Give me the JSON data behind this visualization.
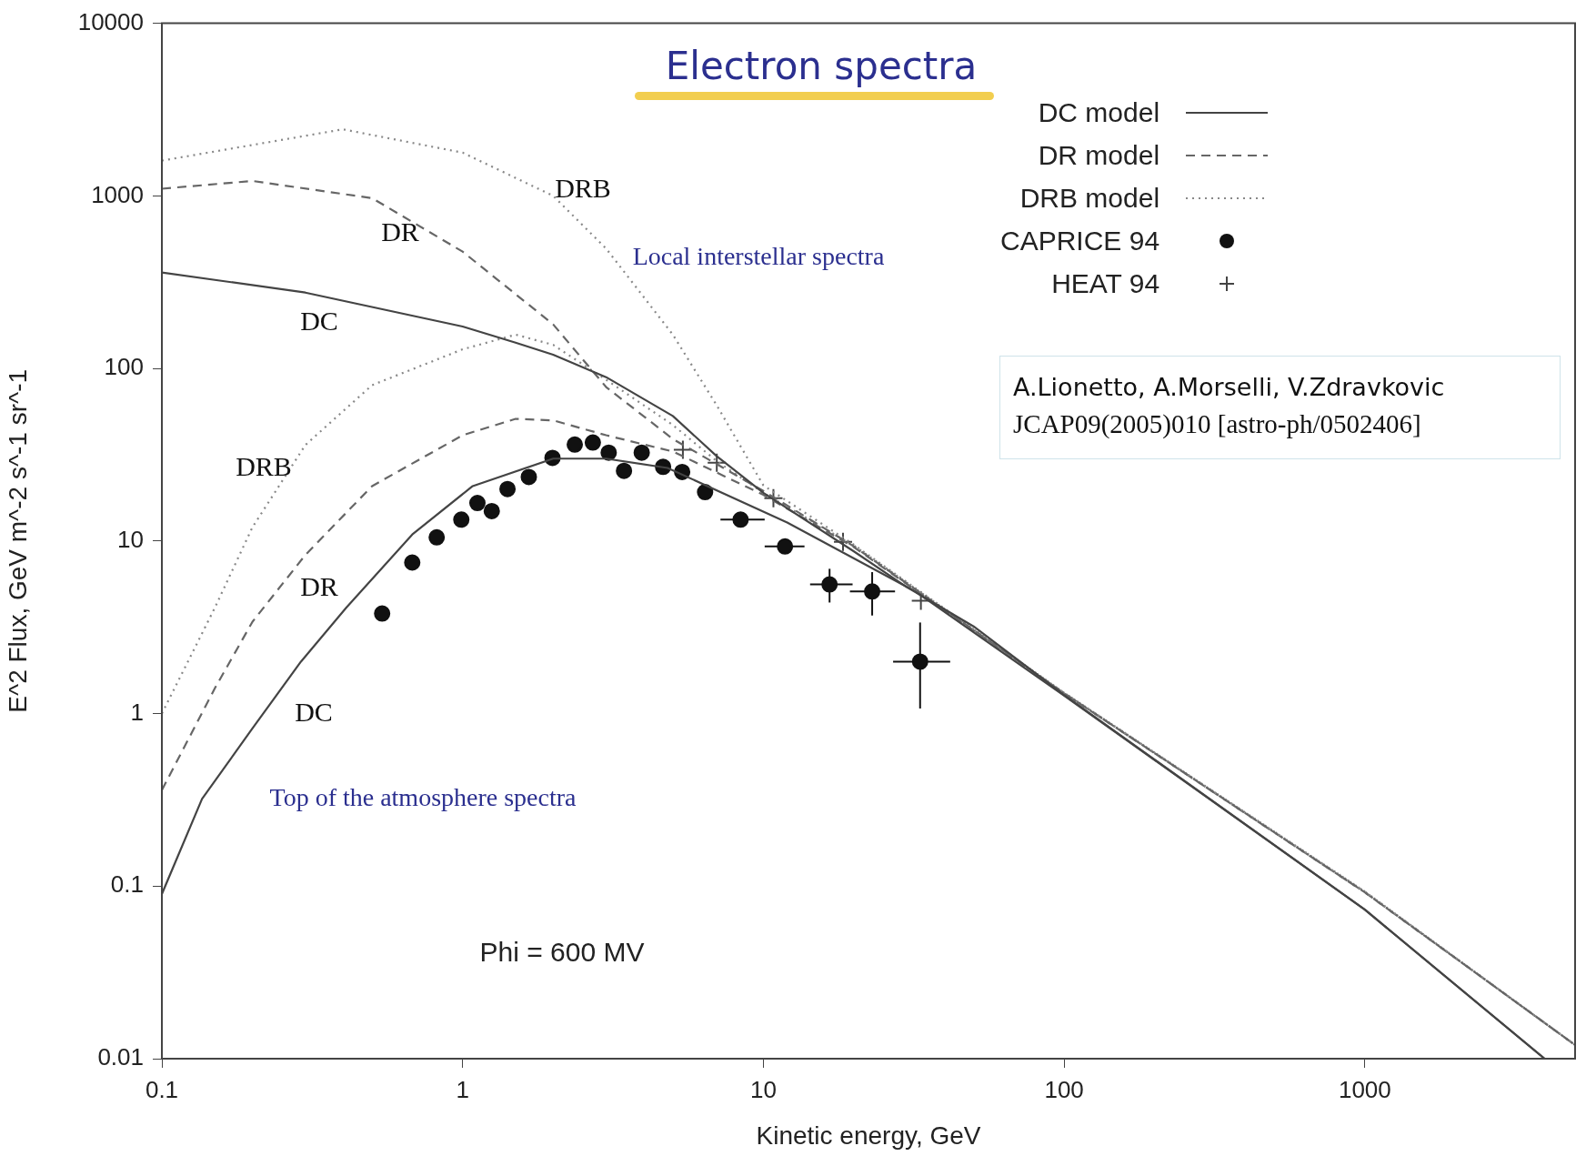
{
  "chart_data": {
    "type": "line",
    "title": "Electron spectra",
    "xlabel": "Kinetic energy, GeV",
    "ylabel": "E^2 Flux, GeV m^-2 s^-1 sr^-1",
    "log": "xy",
    "xlim": [
      0.1,
      5000
    ],
    "ylim": [
      0.01,
      10000
    ],
    "xticks": [
      0.1,
      1,
      10,
      100,
      1000
    ],
    "yticks": [
      0.01,
      0.1,
      1,
      10,
      100,
      1000,
      10000
    ],
    "grid": false,
    "legend": "top right",
    "series": [
      {
        "name": "DC model",
        "line_style": "solid",
        "marker": "none",
        "color": "#444444",
        "x": [
          0.1,
          0.3,
          1,
          1.5,
          2,
          3,
          5,
          7,
          10,
          20,
          30,
          50,
          100,
          1000,
          3960
        ],
        "values": [
          360,
          275,
          175,
          141,
          120,
          89,
          53,
          31,
          19,
          8.7,
          5.4,
          3.2,
          1.28,
          0.073,
          0.01
        ]
      },
      {
        "name": "DR model",
        "line_style": "dashed",
        "marker": "none",
        "color": "#666666",
        "x": [
          0.1,
          0.2,
          0.5,
          1,
          2,
          3,
          5,
          10,
          20,
          100,
          1000,
          5000
        ],
        "values": [
          1100,
          1220,
          970,
          475,
          180,
          78,
          39,
          19.5,
          9.3,
          1.31,
          0.092,
          0.012
        ]
      },
      {
        "name": "DRB model",
        "line_style": "dotted",
        "marker": "none",
        "color": "#888888",
        "x": [
          0.1,
          0.4,
          1,
          2,
          3,
          5,
          7,
          10,
          20,
          100,
          1000,
          5000
        ],
        "values": [
          1600,
          2430,
          1780,
          1000,
          495,
          157,
          61,
          21,
          9.5,
          1.32,
          0.093,
          0.012
        ]
      },
      {
        "line_style": "solid",
        "marker": "none",
        "color": "#444444",
        "x": [
          0.1,
          0.136,
          0.2,
          0.29,
          0.41,
          0.68,
          1.08,
          2,
          3,
          4.8,
          12,
          32,
          100,
          1000,
          3960
        ],
        "values": [
          0.09,
          0.32,
          0.82,
          2.0,
          4.1,
          10.9,
          20.8,
          30,
          30,
          26.5,
          12.8,
          5.1,
          1.27,
          0.073,
          0.01
        ]
      },
      {
        "line_style": "dashed",
        "marker": "none",
        "color": "#666666",
        "x": [
          0.1,
          0.15,
          0.2,
          0.3,
          0.5,
          1,
          1.5,
          2,
          3,
          5,
          10,
          20,
          100,
          1000,
          5000
        ],
        "values": [
          0.36,
          1.4,
          3.4,
          8.3,
          20.8,
          41,
          51,
          50,
          41,
          33,
          18.5,
          9.2,
          1.31,
          0.092,
          0.012
        ]
      },
      {
        "line_style": "dotted",
        "marker": "none",
        "color": "#888888",
        "x": [
          0.1,
          0.15,
          0.2,
          0.3,
          0.5,
          1,
          1.5,
          2,
          3,
          5,
          7,
          10,
          20,
          100,
          1000,
          5000
        ],
        "values": [
          1.0,
          4.1,
          12,
          36,
          80,
          129,
          157,
          137,
          86,
          47,
          29,
          19,
          9.4,
          1.32,
          0.093,
          0.012
        ]
      },
      {
        "name": "CAPRICE 94",
        "type": "scatter",
        "marker": "circle",
        "color": "#111111",
        "x": [
          0.54,
          0.68,
          0.82,
          0.99,
          1.12,
          1.25,
          1.41,
          1.66,
          1.99,
          2.36,
          2.71,
          3.06,
          3.44,
          3.94,
          4.64,
          5.37,
          6.4,
          8.4,
          11.8,
          16.6,
          23,
          33.2
        ],
        "values": [
          3.8,
          7.5,
          10.5,
          13.3,
          16.6,
          14.9,
          20,
          23.5,
          30.3,
          36.2,
          37.2,
          32.5,
          25.5,
          32.5,
          26.9,
          25.1,
          19.2,
          13.3,
          9.3,
          5.6,
          5.1,
          2.0
        ],
        "errors": [
          null,
          null,
          null,
          null,
          null,
          null,
          null,
          null,
          null,
          null,
          null,
          null,
          null,
          null,
          null,
          null,
          null,
          null,
          null,
          [
            4.4,
            6.9
          ],
          [
            3.7,
            6.6
          ],
          [
            1.07,
            3.37
          ]
        ],
        "xerrors": [
          null,
          null,
          null,
          null,
          null,
          null,
          null,
          null,
          null,
          null,
          null,
          null,
          null,
          null,
          null,
          null,
          null,
          [
            7.2,
            10.1
          ],
          [
            10.1,
            13.7
          ],
          [
            14.3,
            19.8
          ],
          [
            19.4,
            27.4
          ],
          [
            27,
            41.8
          ]
        ]
      },
      {
        "name": "HEAT 94",
        "type": "scatter",
        "marker": "cross",
        "color": "#444444",
        "x": [
          5.4,
          7.0,
          10.8,
          18.4,
          33.4
        ],
        "values": [
          33.8,
          28.4,
          17.7,
          9.9,
          4.5
        ]
      }
    ],
    "annotations": [
      "Local interstellar spectra",
      "Top of the atmosphere spectra",
      "Phi = 600 MV",
      "A.Lionetto, A.Morselli, V.Zdravkovic",
      "JCAP09(2005)010 [astro-ph/0502406]",
      "DRB",
      "DR",
      "DC",
      "DRB",
      "DR",
      "DC"
    ]
  }
}
